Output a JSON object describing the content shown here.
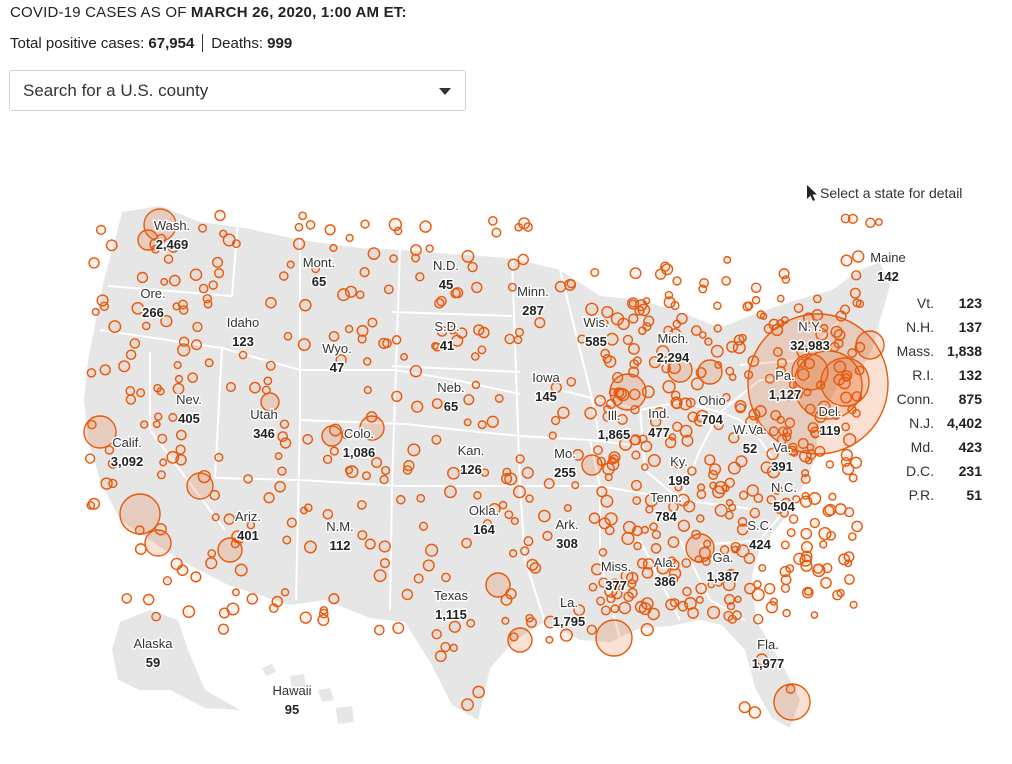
{
  "header": {
    "prefix": "COVID-19 CASES AS OF ",
    "date": "MARCH 26, 2020, 1:00 AM ET:"
  },
  "totals": {
    "cases_label": "Total positive cases: ",
    "cases_value": "67,954",
    "deaths_label": "Deaths: ",
    "deaths_value": "999"
  },
  "search": {
    "placeholder": "Search for a U.S. county"
  },
  "hint": "Select a state for detail",
  "colors": {
    "bubble": "#e8590c",
    "land": "#e6e6e6",
    "border": "#ffffff"
  },
  "states": [
    {
      "name": "Wash.",
      "value": "2,469"
    },
    {
      "name": "Ore.",
      "value": "266"
    },
    {
      "name": "Calif.",
      "value": "3,092"
    },
    {
      "name": "Nev.",
      "value": "405"
    },
    {
      "name": "Idaho",
      "value": "123"
    },
    {
      "name": "Mont.",
      "value": "65"
    },
    {
      "name": "Wyo.",
      "value": "47"
    },
    {
      "name": "Utah",
      "value": "346"
    },
    {
      "name": "Ariz.",
      "value": "401"
    },
    {
      "name": "Colo.",
      "value": "1,086"
    },
    {
      "name": "N.M.",
      "value": "112"
    },
    {
      "name": "N.D.",
      "value": "45"
    },
    {
      "name": "S.D.",
      "value": "41"
    },
    {
      "name": "Neb.",
      "value": "65"
    },
    {
      "name": "Kan.",
      "value": "126"
    },
    {
      "name": "Okla.",
      "value": "164"
    },
    {
      "name": "Texas",
      "value": "1,115"
    },
    {
      "name": "Minn.",
      "value": "287"
    },
    {
      "name": "Iowa",
      "value": "145"
    },
    {
      "name": "Mo.",
      "value": "255"
    },
    {
      "name": "Ark.",
      "value": "308"
    },
    {
      "name": "La.",
      "value": "1,795"
    },
    {
      "name": "Wis.",
      "value": "585"
    },
    {
      "name": "Ill.",
      "value": "1,865"
    },
    {
      "name": "Mich.",
      "value": "2,294"
    },
    {
      "name": "Ind.",
      "value": "477"
    },
    {
      "name": "Ohio",
      "value": "704"
    },
    {
      "name": "Ky.",
      "value": "198"
    },
    {
      "name": "Tenn.",
      "value": "784"
    },
    {
      "name": "Miss.",
      "value": "377"
    },
    {
      "name": "Ala.",
      "value": "386"
    },
    {
      "name": "Ga.",
      "value": "1,387"
    },
    {
      "name": "Fla.",
      "value": "1,977"
    },
    {
      "name": "S.C.",
      "value": "424"
    },
    {
      "name": "N.C.",
      "value": "504"
    },
    {
      "name": "Va.",
      "value": "391"
    },
    {
      "name": "W.Va.",
      "value": "52"
    },
    {
      "name": "Pa.",
      "value": "1,127"
    },
    {
      "name": "N.Y.",
      "value": "32,983"
    },
    {
      "name": "Del.",
      "value": "119"
    },
    {
      "name": "Maine",
      "value": "142"
    },
    {
      "name": "Alaska",
      "value": "59"
    },
    {
      "name": "Hawaii",
      "value": "95"
    }
  ],
  "northeast_table": [
    {
      "name": "Vt.",
      "value": "123"
    },
    {
      "name": "N.H.",
      "value": "137"
    },
    {
      "name": "Mass.",
      "value": "1,838"
    },
    {
      "name": "R.I.",
      "value": "132"
    },
    {
      "name": "Conn.",
      "value": "875"
    },
    {
      "name": "N.J.",
      "value": "4,402"
    },
    {
      "name": "Md.",
      "value": "423"
    },
    {
      "name": "D.C.",
      "value": "231"
    },
    {
      "name": "P.R.",
      "value": "51"
    }
  ]
}
